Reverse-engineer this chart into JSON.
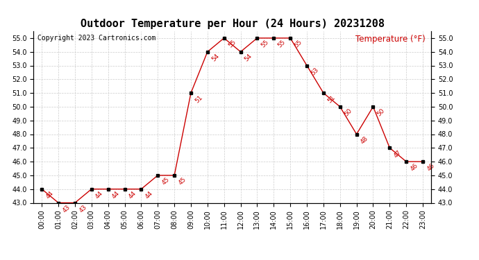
{
  "title": "Outdoor Temperature per Hour (24 Hours) 20231208",
  "copyright": "Copyright 2023 Cartronics.com",
  "legend_label": "Temperature (°F)",
  "hours": [
    "00:00",
    "01:00",
    "02:00",
    "03:00",
    "04:00",
    "05:00",
    "06:00",
    "07:00",
    "08:00",
    "09:00",
    "10:00",
    "11:00",
    "12:00",
    "13:00",
    "14:00",
    "15:00",
    "16:00",
    "17:00",
    "18:00",
    "19:00",
    "20:00",
    "21:00",
    "22:00",
    "23:00"
  ],
  "temps": [
    44,
    43,
    43,
    44,
    44,
    44,
    44,
    45,
    45,
    51,
    54,
    55,
    54,
    55,
    55,
    55,
    53,
    51,
    50,
    48,
    50,
    47,
    46,
    46
  ],
  "line_color": "#cc0000",
  "marker_color": "#000000",
  "label_color": "#cc0000",
  "grid_color": "#cccccc",
  "bg_color": "#ffffff",
  "title_color": "#000000",
  "copyright_color": "#000000",
  "legend_color": "#cc0000",
  "ylim_min": 43.0,
  "ylim_max": 55.5,
  "ytick_min": 43.0,
  "ytick_max": 55.0,
  "ytick_step": 1.0,
  "title_fontsize": 11,
  "label_fontsize": 6.5,
  "copyright_fontsize": 7,
  "legend_fontsize": 8.5,
  "tick_fontsize": 7
}
